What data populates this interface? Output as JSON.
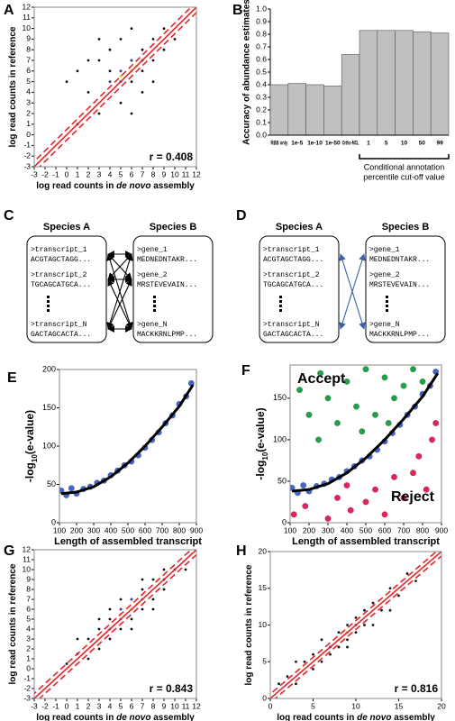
{
  "chart_data": [
    {
      "type": "scatter",
      "panel_label": "A",
      "xlabel": [
        "log read counts in ",
        "de novo",
        " assembly"
      ],
      "xlabel_italic": [
        false,
        true,
        false
      ],
      "ylabel": [
        "log read counts in reference"
      ],
      "ylabel_italic": [
        false
      ],
      "annotation": "r = 0.408",
      "xlim": [
        -3,
        12
      ],
      "ylim": [
        -3,
        12
      ],
      "xticks": [
        -3,
        -2,
        -1,
        0,
        1,
        2,
        3,
        4,
        5,
        6,
        7,
        8,
        9,
        10,
        11,
        12
      ],
      "yticks": [
        -3,
        -2,
        -1,
        0,
        1,
        2,
        3,
        4,
        5,
        6,
        7,
        8,
        9,
        10,
        11,
        12
      ],
      "diagonal": {
        "color": "#e0262a",
        "band": 0.5
      },
      "series": [
        {
          "color": "#111111",
          "x": [
            1,
            2,
            3,
            4,
            4,
            5,
            5,
            5,
            6,
            6,
            6,
            7,
            7,
            7,
            8,
            8,
            9,
            9,
            3,
            2,
            6,
            1,
            0,
            4,
            5,
            6,
            7,
            8,
            10,
            3
          ],
          "y": [
            6,
            4,
            7,
            5,
            8,
            3,
            6,
            9,
            5,
            7,
            10,
            6,
            8,
            4,
            7,
            9,
            8,
            10,
            2,
            7,
            2,
            1,
            5,
            6,
            5,
            6,
            7,
            5,
            9,
            9
          ]
        },
        {
          "color": "#3344bb",
          "x": [
            4,
            5,
            5,
            6,
            6,
            7
          ],
          "y": [
            5,
            5,
            6,
            6,
            7,
            7
          ]
        },
        {
          "color": "#e8d020",
          "x": [
            5,
            6,
            6.5
          ],
          "y": [
            5.5,
            6,
            6.5
          ]
        }
      ]
    },
    {
      "type": "bar",
      "panel_label": "B",
      "ylabel": "Accuracy of abundance estimates",
      "color": "#c0c0c0",
      "categories": [
        "RBB only",
        "1e-5",
        "1e-10",
        "1e-50",
        "Ortho-MCL",
        "1",
        "5",
        "10",
        "50",
        "99"
      ],
      "values": [
        0.4,
        0.41,
        0.4,
        0.39,
        0.64,
        0.83,
        0.83,
        0.83,
        0.82,
        0.81
      ],
      "ylim": [
        0,
        1
      ],
      "yticks": [
        {
          "value": 0,
          "label": "0.0"
        },
        {
          "value": 0.1,
          "label": "0.1"
        },
        {
          "value": 0.2,
          "label": "0.2"
        },
        {
          "value": 0.3,
          "label": "0.3"
        },
        {
          "value": 0.4,
          "label": "0.4"
        },
        {
          "value": 0.5,
          "label": "0.5"
        },
        {
          "value": 0.6,
          "label": "0.6"
        },
        {
          "value": 0.7,
          "label": "0.7"
        },
        {
          "value": 0.8,
          "label": "0.8"
        },
        {
          "value": 0.9,
          "label": "0.9"
        },
        {
          "value": 1,
          "label": "1.0"
        }
      ],
      "bracket": {
        "from": 5,
        "to": 9,
        "label": [
          "Conditional annotation",
          "percentile cut-off value"
        ]
      }
    },
    {
      "type": "scatter",
      "panel_label": "E",
      "xlabel": [
        "Length of assembled transcript"
      ],
      "xlabel_italic": [
        false
      ],
      "ylabel": [
        "-log",
        "10",
        "(e-value)"
      ],
      "ylabel_subscript": [
        false,
        true,
        false
      ],
      "xlim": [
        100,
        900
      ],
      "ylim": [
        0,
        200
      ],
      "xticks": [
        100,
        200,
        300,
        400,
        500,
        600,
        700,
        800,
        900
      ],
      "yticks": [
        0,
        50,
        100,
        150,
        200
      ],
      "series": [
        {
          "color": "#4466cc",
          "x": [
            110,
            140,
            170,
            200,
            240,
            280,
            320,
            360,
            400,
            440,
            480,
            520,
            560,
            600,
            640,
            680,
            720,
            760,
            800,
            840,
            870
          ],
          "y": [
            42,
            36,
            45,
            38,
            44,
            47,
            52,
            55,
            62,
            68,
            75,
            80,
            88,
            98,
            108,
            118,
            130,
            140,
            155,
            165,
            182
          ]
        }
      ],
      "fit": {
        "color": "#000000",
        "x": [
          110,
          200,
          300,
          400,
          500,
          600,
          700,
          800,
          880
        ],
        "y": [
          38,
          40,
          47,
          60,
          78,
          100,
          125,
          152,
          180
        ]
      }
    },
    {
      "type": "scatter",
      "panel_label": "F",
      "xlabel": [
        "Length of assembled transcript"
      ],
      "xlabel_italic": [
        false
      ],
      "ylabel": [
        "-log",
        "10",
        "(e-value)"
      ],
      "ylabel_subscript": [
        false,
        true,
        false
      ],
      "accept_label": "Accept",
      "reject_label": "Reject",
      "xlim": [
        100,
        900
      ],
      "ylim": [
        0,
        190
      ],
      "xticks": [
        100,
        200,
        300,
        400,
        500,
        600,
        700,
        800,
        900
      ],
      "yticks": [
        0,
        50,
        100,
        150
      ],
      "series": [
        {
          "color": "#4466cc",
          "x": [
            110,
            140,
            170,
            200,
            240,
            280,
            320,
            360,
            400,
            440,
            480,
            520,
            560,
            600,
            640,
            680,
            720,
            760,
            800,
            840,
            870
          ],
          "y": [
            42,
            36,
            45,
            38,
            44,
            47,
            52,
            55,
            62,
            68,
            75,
            80,
            88,
            98,
            108,
            118,
            130,
            140,
            155,
            165,
            182
          ]
        },
        {
          "color": "#22a04a",
          "x": [
            150,
            200,
            260,
            300,
            350,
            400,
            450,
            500,
            550,
            600,
            650,
            700,
            750,
            800,
            250,
            480,
            620
          ],
          "y": [
            160,
            130,
            180,
            150,
            120,
            170,
            140,
            185,
            130,
            175,
            150,
            165,
            185,
            170,
            100,
            110,
            120
          ]
        },
        {
          "color": "#e0245a",
          "x": [
            120,
            180,
            300,
            350,
            420,
            500,
            550,
            600,
            650,
            700,
            750,
            780,
            820,
            850,
            870,
            400
          ],
          "y": [
            10,
            20,
            5,
            30,
            15,
            25,
            40,
            10,
            55,
            30,
            60,
            80,
            40,
            100,
            120,
            45
          ]
        }
      ],
      "fit": {
        "color": "#000000",
        "x": [
          110,
          200,
          300,
          400,
          500,
          600,
          700,
          800,
          880
        ],
        "y": [
          38,
          40,
          47,
          60,
          78,
          100,
          125,
          152,
          180
        ]
      }
    },
    {
      "type": "scatter",
      "panel_label": "G",
      "xlabel": [
        "log read counts in ",
        "de novo",
        " assembly"
      ],
      "xlabel_italic": [
        false,
        true,
        false
      ],
      "ylabel": [
        "log read counts in reference"
      ],
      "ylabel_italic": [
        false
      ],
      "annotation": "r = 0.843",
      "xlim": [
        -3,
        12
      ],
      "ylim": [
        -3,
        12
      ],
      "xticks": [
        -3,
        -2,
        -1,
        0,
        1,
        2,
        3,
        4,
        5,
        6,
        7,
        8,
        9,
        10,
        11,
        12
      ],
      "yticks": [
        -3,
        -2,
        -1,
        0,
        1,
        2,
        3,
        4,
        5,
        6,
        7,
        8,
        9,
        10,
        11,
        12
      ],
      "diagonal": {
        "color": "#e0262a",
        "band": 0.5
      },
      "series": [
        {
          "color": "#111111",
          "x": [
            0,
            1,
            2,
            3,
            3,
            4,
            4,
            5,
            5,
            6,
            6,
            7,
            7,
            8,
            8,
            9,
            9,
            10,
            2,
            6,
            7,
            4,
            8,
            1,
            11,
            5,
            3,
            9
          ],
          "y": [
            0.5,
            1.5,
            3,
            2,
            4,
            3,
            5,
            4,
            6,
            5,
            7,
            6,
            8,
            7,
            9,
            8,
            10,
            10,
            1,
            4,
            9,
            6,
            6,
            3,
            10,
            7,
            5,
            9
          ]
        },
        {
          "color": "#3344bb",
          "x": [
            4,
            5,
            5,
            6,
            6,
            7
          ],
          "y": [
            4,
            5,
            6,
            6,
            7,
            7
          ]
        },
        {
          "color": "#e8d020",
          "x": [
            5,
            6,
            6.5
          ],
          "y": [
            5.5,
            6,
            6.5
          ]
        }
      ]
    },
    {
      "type": "scatter",
      "panel_label": "H",
      "xlabel": [
        "log read counts in ",
        "de novo",
        " assembly"
      ],
      "xlabel_italic": [
        false,
        true,
        false
      ],
      "ylabel": [
        "log read counts in reference"
      ],
      "ylabel_italic": [
        false
      ],
      "annotation": "r = 0.816",
      "xlim": [
        0,
        20
      ],
      "ylim": [
        0,
        20
      ],
      "xticks": [
        0,
        5,
        10,
        15,
        20
      ],
      "yticks": [
        0,
        5,
        10,
        15,
        20
      ],
      "diagonal": {
        "color": "#e0262a",
        "band": 0.6
      },
      "series": [
        {
          "color": "#111111",
          "x": [
            2,
            3,
            4,
            5,
            5,
            6,
            7,
            7,
            8,
            8,
            9,
            9,
            10,
            10,
            11,
            12,
            12,
            13,
            14,
            15,
            16,
            3,
            6,
            9,
            11,
            14,
            17,
            1
          ],
          "y": [
            3,
            2,
            5,
            4,
            6,
            5,
            7,
            6,
            9,
            7,
            8,
            10,
            9,
            11,
            12,
            10,
            13,
            12,
            15,
            14,
            17,
            5,
            8,
            7,
            10,
            12,
            16,
            2
          ]
        },
        {
          "color": "#3344bb",
          "x": [
            7,
            8,
            9,
            10
          ],
          "y": [
            7,
            8,
            9,
            10
          ]
        },
        {
          "color": "#e8d020",
          "x": [
            8,
            9
          ],
          "y": [
            8,
            9
          ]
        }
      ]
    }
  ],
  "diagrams": [
    {
      "panel_label": "C",
      "species": [
        "Species A",
        "Species B"
      ],
      "arrow_color": "#000000",
      "left": [
        {
          "id": ">transcript_1",
          "seq": "ACGTAGCTAGG..."
        },
        {
          "id": ">transcript_2",
          "seq": "TGCAGCATGCA..."
        },
        {
          "id": ">transcript_N",
          "seq": "GACTAGCACTA..."
        }
      ],
      "right": [
        {
          "id": ">gene_1",
          "seq": "MEDNEDNTAKR..."
        },
        {
          "id": ">gene_2",
          "seq": "MRSTEVEVAIN..."
        },
        {
          "id": ">gene_N",
          "seq": "MACKKRNLPMP..."
        }
      ],
      "links": [
        [
          0,
          0
        ],
        [
          0,
          1
        ],
        [
          0,
          2
        ],
        [
          1,
          0
        ],
        [
          1,
          1
        ],
        [
          1,
          2
        ],
        [
          2,
          0
        ],
        [
          2,
          1
        ],
        [
          2,
          2
        ]
      ]
    },
    {
      "panel_label": "D",
      "species": [
        "Species A",
        "Species B"
      ],
      "arrow_color": "#3a5fb0",
      "left": [
        {
          "id": ">transcript_1",
          "seq": "ACGTAGCTAGG..."
        },
        {
          "id": ">transcript_2",
          "seq": "TGCAGCATGCA..."
        },
        {
          "id": ">transcript_N",
          "seq": "GACTAGCACTA..."
        }
      ],
      "right": [
        {
          "id": ">gene_1",
          "seq": "MEDNEDNTAKR..."
        },
        {
          "id": ">gene_2",
          "seq": "MRSTEVEVAIN..."
        },
        {
          "id": ">gene_N",
          "seq": "MACKKRNLPMP..."
        }
      ],
      "links": [
        [
          0,
          2
        ],
        [
          2,
          0
        ]
      ]
    }
  ]
}
